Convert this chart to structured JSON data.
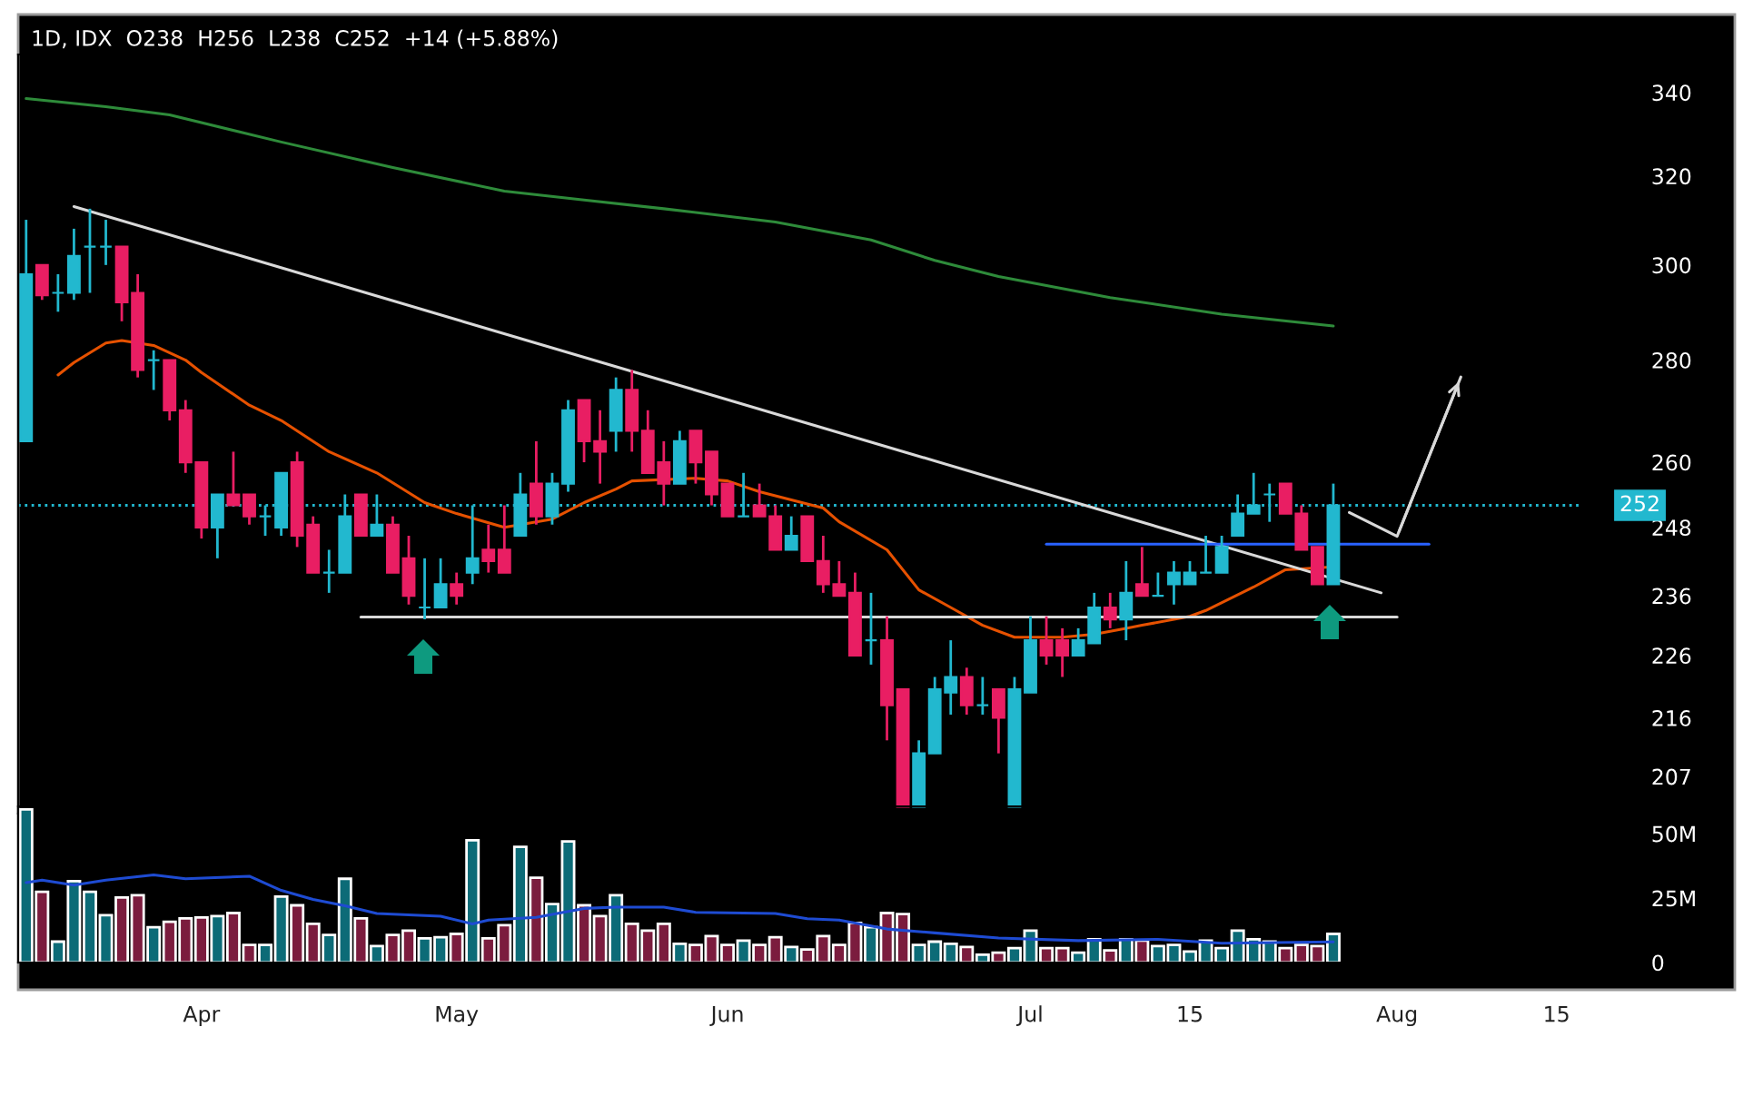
{
  "chart_data": [
    {
      "type": "candlestick",
      "title": "1D, IDX  O238  H256  L238  C252  +14 (+5.88%)",
      "categories": [
        null,
        null,
        null,
        null,
        null,
        null,
        null,
        null,
        null,
        null,
        null,
        null,
        null,
        null,
        null,
        null,
        null,
        null,
        null,
        null,
        null,
        null,
        null,
        null,
        null,
        null,
        null,
        null,
        null,
        null,
        null,
        null,
        null,
        null,
        null,
        null,
        null,
        null,
        null,
        null,
        null,
        null,
        null,
        null,
        null,
        null,
        null,
        null,
        null,
        null,
        null,
        null,
        null,
        null,
        null,
        null,
        null,
        null,
        null,
        null,
        null,
        null,
        null,
        null,
        null,
        null,
        null,
        null,
        null,
        null,
        null,
        null,
        null,
        null,
        null,
        null,
        null,
        null,
        null,
        null,
        null,
        null,
        null,
        null,
        null,
        null,
        null,
        null,
        null,
        null,
        null,
        null,
        null,
        null,
        null,
        null,
        null,
        null
      ],
      "ohlc": [
        [
          264,
          310,
          264,
          298
        ],
        [
          300,
          300,
          292.5,
          293.5
        ],
        [
          294,
          298,
          290,
          294
        ],
        [
          294,
          308,
          292.5,
          302
        ],
        [
          304,
          312.5,
          294,
          304
        ],
        [
          304,
          310,
          300,
          304
        ],
        [
          304,
          304,
          288,
          292
        ],
        [
          294,
          298,
          276.5,
          278
        ],
        [
          280,
          282,
          274,
          280
        ],
        [
          280,
          280,
          268,
          270
        ],
        [
          270,
          272,
          258,
          260
        ],
        [
          260,
          260,
          246,
          248
        ],
        [
          248,
          254,
          242.5,
          254
        ],
        [
          254,
          262,
          252,
          252
        ],
        [
          254,
          254,
          248.5,
          250
        ],
        [
          250,
          252,
          246.5,
          250
        ],
        [
          248,
          258,
          246.5,
          258
        ],
        [
          260,
          262,
          244.5,
          246.5
        ],
        [
          248.5,
          250,
          240,
          240
        ],
        [
          240,
          244,
          236.5,
          240
        ],
        [
          240,
          254,
          240,
          250
        ],
        [
          254,
          254,
          246.5,
          246.5
        ],
        [
          246.5,
          254,
          246.5,
          248.5
        ],
        [
          248.5,
          250,
          240,
          240
        ],
        [
          242.5,
          246.5,
          234.5,
          236
        ],
        [
          234,
          242.5,
          232,
          234
        ],
        [
          234,
          242.5,
          234,
          238
        ],
        [
          238,
          240,
          234.5,
          236
        ],
        [
          240,
          252,
          238,
          242.5
        ],
        [
          244,
          248.5,
          240,
          242
        ],
        [
          244,
          252,
          240,
          240
        ],
        [
          246.5,
          258,
          246.5,
          254
        ],
        [
          256,
          264,
          248.5,
          250
        ],
        [
          250,
          258,
          248.5,
          256
        ],
        [
          256,
          272,
          254.5,
          270
        ],
        [
          272,
          272,
          260,
          264
        ],
        [
          264,
          270,
          256,
          262
        ],
        [
          266,
          276.5,
          262,
          274
        ],
        [
          274,
          278,
          262,
          266
        ],
        [
          266,
          270,
          258,
          258
        ],
        [
          260,
          264,
          252,
          256
        ],
        [
          256,
          266,
          256,
          264
        ],
        [
          266,
          266,
          256,
          260
        ],
        [
          262,
          262,
          252,
          254
        ],
        [
          256,
          256,
          250,
          250
        ],
        [
          250,
          258,
          250,
          250
        ],
        [
          252,
          256,
          250,
          250
        ],
        [
          250,
          252,
          244,
          244
        ],
        [
          244,
          250,
          244,
          246.5
        ],
        [
          250,
          250,
          242,
          242
        ],
        [
          242,
          246.5,
          236.5,
          238
        ],
        [
          238,
          242,
          236,
          236
        ],
        [
          236.5,
          240,
          226,
          226
        ],
        [
          228.5,
          236.5,
          224.5,
          228.5
        ],
        [
          228.5,
          232.5,
          212.5,
          218
        ],
        [
          220.5,
          220.5,
          202.5,
          202.5
        ],
        [
          202.5,
          212.5,
          202.5,
          210.5
        ],
        [
          210.5,
          222.5,
          210.5,
          220.5
        ],
        [
          220,
          228.5,
          216.5,
          222.5
        ],
        [
          222.5,
          224,
          216.5,
          218
        ],
        [
          218,
          222.5,
          216.5,
          218
        ],
        [
          220.5,
          220.5,
          210.5,
          216
        ],
        [
          202.5,
          222.5,
          202.5,
          220.5
        ],
        [
          220,
          232.5,
          220,
          228.5
        ],
        [
          228.5,
          232.5,
          224.5,
          226
        ],
        [
          228.5,
          230.5,
          222.5,
          226
        ],
        [
          226,
          230.5,
          226,
          228.5
        ],
        [
          228,
          236.5,
          228,
          234
        ],
        [
          234,
          236.5,
          230.5,
          232
        ],
        [
          232,
          242,
          228.5,
          236.5
        ],
        [
          238,
          244.5,
          236,
          236
        ],
        [
          236,
          240,
          236,
          236
        ],
        [
          238,
          242,
          234.5,
          240
        ],
        [
          238,
          242,
          238,
          240
        ],
        [
          240,
          246.5,
          240,
          240
        ],
        [
          240,
          246.5,
          240,
          244.5
        ],
        [
          246.5,
          254,
          246.5,
          250.5
        ],
        [
          250.5,
          258,
          250.5,
          252
        ],
        [
          254,
          256,
          249,
          254
        ],
        [
          256,
          256,
          250.5,
          250.5
        ],
        [
          250.5,
          252,
          244,
          244
        ],
        [
          244.5,
          244.5,
          238,
          238
        ],
        [
          238,
          256,
          238,
          252
        ],
        null,
        null,
        null,
        null,
        null,
        null,
        null,
        null,
        null,
        null,
        null,
        null,
        null,
        null,
        null
      ],
      "colors": [
        "#22b8cf",
        "#e91e63",
        "#22b8cf",
        "#22b8cf",
        "#22b8cf",
        "#22b8cf",
        "#e91e63",
        "#e91e63",
        "#22b8cf",
        "#e91e63",
        "#e91e63",
        "#e91e63",
        "#22b8cf",
        "#e91e63",
        "#e91e63",
        "#22b8cf",
        "#22b8cf",
        "#e91e63",
        "#e91e63",
        "#22b8cf",
        "#22b8cf",
        "#e91e63",
        "#22b8cf",
        "#e91e63",
        "#e91e63",
        "#22b8cf",
        "#22b8cf",
        "#e91e63",
        "#22b8cf",
        "#e91e63",
        "#e91e63",
        "#22b8cf",
        "#e91e63",
        "#22b8cf",
        "#22b8cf",
        "#e91e63",
        "#e91e63",
        "#22b8cf",
        "#e91e63",
        "#e91e63",
        "#e91e63",
        "#22b8cf",
        "#e91e63",
        "#e91e63",
        "#e91e63",
        "#22b8cf",
        "#e91e63",
        "#e91e63",
        "#22b8cf",
        "#e91e63",
        "#e91e63",
        "#e91e63",
        "#e91e63",
        "#22b8cf",
        "#e91e63",
        "#e91e63",
        "#22b8cf",
        "#22b8cf",
        "#22b8cf",
        "#e91e63",
        "#22b8cf",
        "#e91e63",
        "#22b8cf",
        "#22b8cf",
        "#e91e63",
        "#e91e63",
        "#22b8cf",
        "#22b8cf",
        "#e91e63",
        "#22b8cf",
        "#e91e63",
        "#22b8cf",
        "#22b8cf",
        "#22b8cf",
        "#22b8cf",
        "#22b8cf",
        "#22b8cf",
        "#22b8cf",
        "#22b8cf",
        "#e91e63",
        "#e91e63",
        "#e91e63",
        "#22b8cf",
        null,
        null,
        null,
        null,
        null,
        null,
        null,
        null,
        null,
        null,
        null,
        null,
        null,
        null,
        null
      ],
      "series": [
        {
          "type": "line",
          "color": "#e65100",
          "values": [
            null,
            null,
            277,
            279.5,
            null,
            283.5,
            284,
            null,
            283,
            null,
            280,
            277.5,
            null,
            null,
            271,
            null,
            268,
            null,
            null,
            262,
            null,
            null,
            258,
            null,
            null,
            252.5,
            null,
            250.5,
            null,
            null,
            248,
            null,
            null,
            249.5,
            null,
            252.5,
            null,
            255,
            256.5,
            null,
            null,
            null,
            257,
            null,
            256.5,
            null,
            254.5,
            null,
            null,
            null,
            251.5,
            249,
            null,
            null,
            244,
            null,
            237,
            null,
            234,
            null,
            231,
            null,
            229,
            null,
            null,
            229,
            null,
            229.5,
            null,
            230.5,
            231,
            null,
            null,
            232.5,
            233.5,
            null,
            null,
            237.5,
            null,
            240.5,
            null,
            null,
            241,
            null,
            null,
            null,
            null,
            null,
            null,
            null,
            null,
            null,
            null,
            null,
            null,
            null,
            null,
            null
          ]
        },
        {
          "type": "line",
          "color": "#2e8b3a",
          "values": [
            338.5,
            null,
            null,
            null,
            null,
            336.5,
            null,
            null,
            null,
            334.5,
            null,
            null,
            null,
            null,
            null,
            null,
            328,
            null,
            null,
            null,
            null,
            null,
            null,
            322,
            null,
            null,
            null,
            null,
            null,
            null,
            316.5,
            null,
            null,
            null,
            null,
            314.5,
            null,
            null,
            null,
            null,
            312.5,
            null,
            null,
            null,
            null,
            null,
            null,
            309.5,
            null,
            null,
            null,
            null,
            null,
            305.5,
            null,
            null,
            null,
            301,
            null,
            null,
            null,
            297.5,
            null,
            null,
            null,
            null,
            null,
            null,
            293,
            null,
            null,
            null,
            null,
            null,
            null,
            289.5,
            null,
            null,
            null,
            null,
            null,
            null,
            287,
            null,
            null,
            null,
            null,
            null,
            null,
            null,
            null,
            null,
            null,
            null,
            null,
            null,
            null,
            null
          ]
        },
        {
          "type": "line",
          "color": "#d9d9d9",
          "values": [
            null,
            null,
            null,
            313,
            null,
            null,
            null,
            null,
            null,
            null,
            null,
            null,
            null,
            null,
            null,
            null,
            null,
            null,
            null,
            null,
            null,
            null,
            null,
            null,
            null,
            null,
            null,
            null,
            null,
            null,
            null,
            null,
            null,
            null,
            null,
            null,
            null,
            null,
            null,
            null,
            null,
            null,
            null,
            null,
            null,
            null,
            null,
            null,
            null,
            null,
            null,
            null,
            null,
            null,
            null,
            null,
            null,
            null,
            null,
            null,
            null,
            null,
            null,
            null,
            null,
            null,
            null,
            null,
            null,
            null,
            null,
            null,
            null,
            null,
            null,
            null,
            null,
            null,
            null,
            null,
            null,
            null,
            null,
            null,
            null,
            236.5,
            null,
            null,
            null,
            null,
            null,
            null,
            null,
            null,
            null,
            null,
            null,
            null
          ]
        },
        {
          "type": "line",
          "color": "#d9d9d9",
          "values": [
            null,
            null,
            null,
            null,
            null,
            null,
            null,
            null,
            null,
            null,
            null,
            null,
            null,
            null,
            null,
            null,
            null,
            null,
            null,
            null,
            null,
            232.4,
            null,
            null,
            null,
            null,
            null,
            null,
            null,
            null,
            null,
            null,
            null,
            null,
            null,
            null,
            null,
            null,
            null,
            null,
            null,
            null,
            null,
            null,
            null,
            null,
            null,
            null,
            null,
            null,
            null,
            null,
            null,
            null,
            null,
            null,
            null,
            null,
            null,
            null,
            null,
            null,
            null,
            null,
            null,
            null,
            null,
            null,
            null,
            null,
            null,
            null,
            null,
            null,
            null,
            null,
            null,
            null,
            null,
            null,
            null,
            null,
            null,
            null,
            null,
            null,
            232.4,
            null,
            null,
            null,
            null,
            null,
            null,
            null,
            null,
            null,
            null,
            null
          ]
        },
        {
          "type": "line",
          "color": "#2962ff",
          "values": [
            null,
            null,
            null,
            null,
            null,
            null,
            null,
            null,
            null,
            null,
            null,
            null,
            null,
            null,
            null,
            null,
            null,
            null,
            null,
            null,
            null,
            null,
            null,
            null,
            null,
            null,
            null,
            null,
            null,
            null,
            null,
            null,
            null,
            null,
            null,
            null,
            null,
            null,
            null,
            null,
            null,
            null,
            null,
            null,
            null,
            null,
            null,
            null,
            null,
            null,
            null,
            null,
            null,
            null,
            null,
            null,
            null,
            null,
            null,
            null,
            null,
            null,
            null,
            null,
            245,
            null,
            null,
            null,
            null,
            null,
            null,
            null,
            null,
            null,
            null,
            null,
            null,
            null,
            null,
            null,
            null,
            null,
            null,
            null,
            null,
            null,
            null,
            null,
            245,
            null,
            null,
            null,
            null,
            null,
            null,
            null,
            null,
            null
          ]
        },
        {
          "type": "line",
          "color": "#d9d9d9",
          "values": [
            null,
            null,
            null,
            null,
            null,
            null,
            null,
            null,
            null,
            null,
            null,
            null,
            null,
            null,
            null,
            null,
            null,
            null,
            null,
            null,
            null,
            null,
            null,
            null,
            null,
            null,
            null,
            null,
            null,
            null,
            null,
            null,
            null,
            null,
            null,
            null,
            null,
            null,
            null,
            null,
            null,
            null,
            null,
            null,
            null,
            null,
            null,
            null,
            null,
            null,
            null,
            null,
            null,
            null,
            null,
            null,
            null,
            null,
            null,
            null,
            null,
            null,
            null,
            null,
            null,
            null,
            null,
            null,
            null,
            null,
            null,
            null,
            null,
            null,
            null,
            null,
            null,
            null,
            null,
            null,
            null,
            null,
            null,
            250.7,
            null,
            null,
            246.4,
            null,
            null,
            null,
            276.6,
            null,
            null,
            null,
            null,
            null,
            null,
            null
          ]
        }
      ],
      "log": true,
      "ylim": [
        201.5,
        349.5
      ],
      "yticks": [
        207,
        216,
        226,
        236,
        248,
        260,
        280,
        300,
        320,
        340
      ],
      "tick_labels": "y",
      "ref_lines": [
        {
          "axis": "y",
          "value": 252,
          "label": "252",
          "color": "#22b8cf",
          "line_style": "dotted"
        }
      ]
    },
    {
      "type": "bar",
      "categories": [
        null,
        null,
        null,
        null,
        null,
        null,
        null,
        null,
        null,
        null,
        null,
        "Apr",
        null,
        null,
        null,
        null,
        null,
        null,
        null,
        null,
        null,
        null,
        null,
        null,
        null,
        null,
        null,
        "May",
        null,
        null,
        null,
        null,
        null,
        null,
        null,
        null,
        null,
        null,
        null,
        null,
        null,
        null,
        null,
        null,
        "Jun",
        null,
        null,
        null,
        null,
        null,
        null,
        null,
        null,
        null,
        null,
        null,
        null,
        null,
        null,
        null,
        null,
        null,
        null,
        "Jul",
        null,
        null,
        null,
        null,
        null,
        null,
        null,
        null,
        null,
        "15",
        null,
        null,
        null,
        null,
        null,
        null,
        null,
        null,
        null,
        null,
        null,
        null,
        "Aug",
        null,
        null,
        null,
        null,
        null,
        null,
        null,
        null,
        null,
        "15",
        null
      ],
      "series": [
        {
          "type": "bar",
          "values": [
            59.4,
            27.4,
            8.1,
            31.6,
            27.4,
            18.4,
            25.2,
            26.1,
            13.7,
            15.8,
            17.1,
            17.5,
            18,
            19.2,
            6.8,
            6.8,
            25.6,
            22.2,
            15,
            10.7,
            32.5,
            17.1,
            6.4,
            10.7,
            12.4,
            9.4,
            9.8,
            11.1,
            47.4,
            9.4,
            14.5,
            44.9,
            32.9,
            22.7,
            47,
            22.2,
            18,
            26.1,
            15,
            12.4,
            15,
            7.3,
            6.8,
            10.3,
            6.8,
            8.5,
            6.8,
            9.8,
            6,
            5.1,
            10.3,
            6.8,
            15.4,
            13.7,
            19.2,
            18.8,
            6.8,
            8.1,
            7.3,
            6,
            3,
            3.8,
            5.6,
            12.4,
            5.6,
            5.6,
            3.8,
            9,
            4.7,
            9,
            8.5,
            6.4,
            6.8,
            4.3,
            8.5,
            5.6,
            12.4,
            9,
            8.1,
            5.6,
            6.8,
            6.4,
            11.1,
            null,
            null,
            null,
            null,
            null,
            null,
            null,
            null,
            null,
            null,
            null,
            null,
            null,
            null,
            null
          ],
          "colors": [
            "#0c6b77",
            "#7b1c3e",
            "#0c6b77",
            "#0c6b77",
            "#0c6b77",
            "#0c6b77",
            "#7b1c3e",
            "#7b1c3e",
            "#0c6b77",
            "#7b1c3e",
            "#7b1c3e",
            "#7b1c3e",
            "#0c6b77",
            "#7b1c3e",
            "#7b1c3e",
            "#0c6b77",
            "#0c6b77",
            "#7b1c3e",
            "#7b1c3e",
            "#0c6b77",
            "#0c6b77",
            "#7b1c3e",
            "#0c6b77",
            "#7b1c3e",
            "#7b1c3e",
            "#0c6b77",
            "#0c6b77",
            "#7b1c3e",
            "#0c6b77",
            "#7b1c3e",
            "#7b1c3e",
            "#0c6b77",
            "#7b1c3e",
            "#0c6b77",
            "#0c6b77",
            "#7b1c3e",
            "#7b1c3e",
            "#0c6b77",
            "#7b1c3e",
            "#7b1c3e",
            "#7b1c3e",
            "#0c6b77",
            "#7b1c3e",
            "#7b1c3e",
            "#7b1c3e",
            "#0c6b77",
            "#7b1c3e",
            "#7b1c3e",
            "#0c6b77",
            "#7b1c3e",
            "#7b1c3e",
            "#7b1c3e",
            "#7b1c3e",
            "#0c6b77",
            "#7b1c3e",
            "#7b1c3e",
            "#0c6b77",
            "#0c6b77",
            "#0c6b77",
            "#7b1c3e",
            "#0c6b77",
            "#7b1c3e",
            "#0c6b77",
            "#0c6b77",
            "#7b1c3e",
            "#7b1c3e",
            "#0c6b77",
            "#0c6b77",
            "#7b1c3e",
            "#0c6b77",
            "#7b1c3e",
            "#0c6b77",
            "#0c6b77",
            "#0c6b77",
            "#0c6b77",
            "#0c6b77",
            "#0c6b77",
            "#0c6b77",
            "#0c6b77",
            "#7b1c3e",
            "#7b1c3e",
            "#7b1c3e",
            "#0c6b77",
            null,
            null,
            null,
            null,
            null,
            null,
            null,
            null,
            null,
            null,
            null,
            null,
            null,
            null,
            null
          ]
        },
        {
          "type": "line",
          "color": "#1e4bd2",
          "values": [
            31,
            32,
            null,
            30,
            null,
            32,
            null,
            null,
            34,
            null,
            32.5,
            null,
            null,
            null,
            33.5,
            null,
            28,
            null,
            24.5,
            null,
            22,
            null,
            19,
            null,
            null,
            null,
            18,
            null,
            15,
            16.5,
            null,
            null,
            17.5,
            null,
            null,
            21,
            null,
            21.5,
            null,
            null,
            21.5,
            null,
            19.5,
            null,
            null,
            null,
            null,
            19,
            null,
            17,
            null,
            16.5,
            null,
            null,
            13,
            null,
            null,
            11.5,
            null,
            null,
            null,
            9.5,
            null,
            null,
            null,
            null,
            8.5,
            null,
            null,
            null,
            null,
            9,
            null,
            null,
            null,
            7.5,
            null,
            null,
            null,
            null,
            null,
            null,
            8,
            null,
            null,
            null,
            null,
            null,
            null,
            null,
            null,
            null,
            null,
            null,
            null,
            null,
            null,
            null
          ]
        }
      ],
      "ylim": [
        0,
        60.6
      ],
      "yticks": [
        {
          "value": 0,
          "label": "0"
        },
        {
          "value": 25,
          "label": "25M"
        },
        {
          "value": 50,
          "label": "50M"
        }
      ]
    }
  ]
}
